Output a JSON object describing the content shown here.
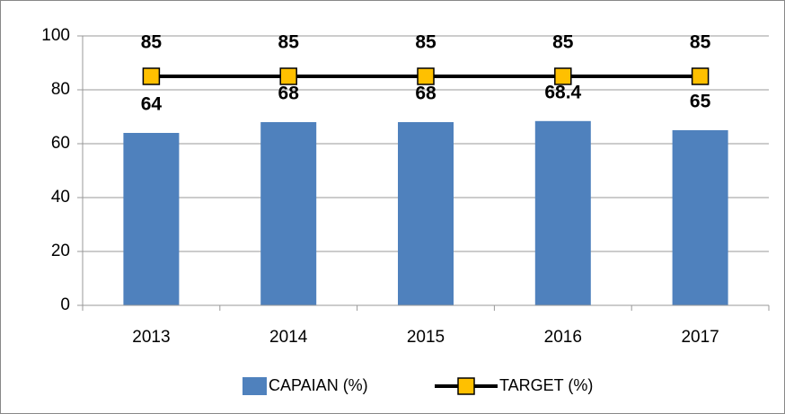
{
  "chart_data": {
    "type": "bar",
    "categories": [
      "2013",
      "2014",
      "2015",
      "2016",
      "2017"
    ],
    "series": [
      {
        "name": "CAPAIAN (%)",
        "type": "bar",
        "color": "#4f81bd",
        "values": [
          64,
          68,
          68,
          68.4,
          65
        ]
      },
      {
        "name": "TARGET (%)",
        "type": "line",
        "color": "#000000",
        "marker_color": "#ffc000",
        "values": [
          85,
          85,
          85,
          85,
          85
        ]
      }
    ],
    "ylim": [
      0,
      100
    ],
    "yticks": [
      0,
      20,
      40,
      60,
      80,
      100
    ],
    "grid": true,
    "legend": "bottom"
  }
}
